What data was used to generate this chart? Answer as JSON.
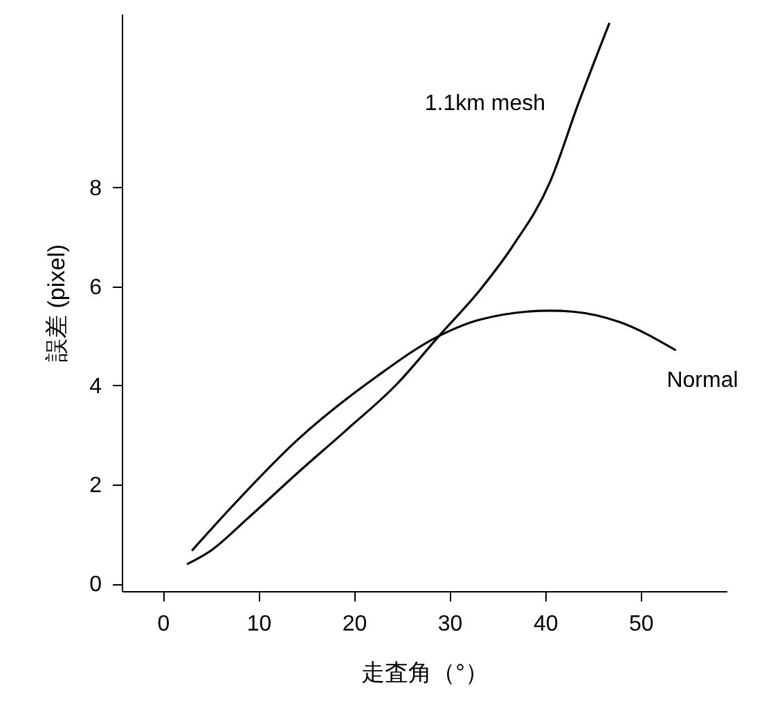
{
  "chart_data": {
    "type": "line",
    "xlabel": "走査角（°）",
    "ylabel": "誤差 (pixel)",
    "xlim": [
      -4.3,
      59
    ],
    "ylim": [
      -0.15,
      11.5
    ],
    "xticks": [
      0,
      10,
      20,
      30,
      40,
      50
    ],
    "yticks": [
      0,
      2,
      4,
      6,
      8
    ],
    "grid": false,
    "legend": false,
    "marker": "none",
    "line_style": "solid",
    "series": [
      {
        "name": "1.1km mesh",
        "color": "#000000",
        "x": [
          2.6,
          4.9,
          9.0,
          14.3,
          19.2,
          24.5,
          28.9,
          33.2,
          36.6,
          40.5,
          43.5,
          46.7
        ],
        "values": [
          0.4,
          0.65,
          1.34,
          2.27,
          3.1,
          4.03,
          5.0,
          5.93,
          6.81,
          8.1,
          9.7,
          11.3
        ]
      },
      {
        "name": "Normal",
        "color": "#000000",
        "x": [
          3.1,
          7.1,
          13.9,
          22.3,
          28.9,
          33.2,
          40.5,
          42.9,
          47.8,
          53.6
        ],
        "values": [
          0.68,
          1.53,
          2.87,
          4.17,
          5.0,
          5.33,
          5.51,
          5.49,
          5.28,
          4.72
        ]
      }
    ]
  }
}
